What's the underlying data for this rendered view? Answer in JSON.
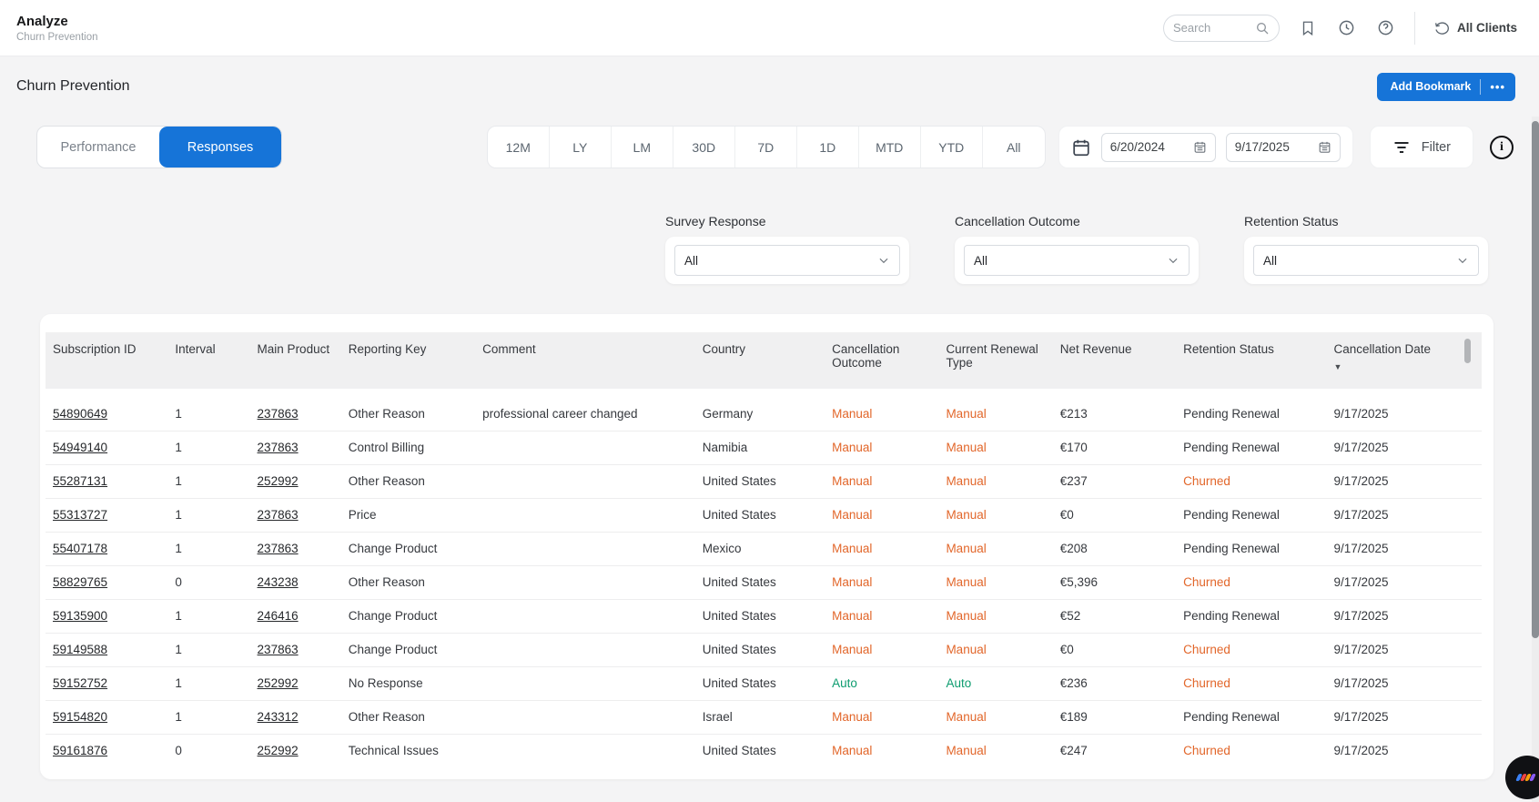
{
  "topbar": {
    "app_title": "Analyze",
    "app_subtitle": "Churn Prevention",
    "search_placeholder": "Search",
    "all_clients_label": "All Clients"
  },
  "page": {
    "title": "Churn Prevention",
    "add_bookmark_label": "Add Bookmark",
    "more_dots": "•••"
  },
  "tabs": [
    {
      "label": "Performance",
      "active": false
    },
    {
      "label": "Responses",
      "active": true
    }
  ],
  "time_ranges": [
    "12M",
    "LY",
    "LM",
    "30D",
    "7D",
    "1D",
    "MTD",
    "YTD",
    "All"
  ],
  "date_range": {
    "start": "6/20/2024",
    "end": "9/17/2025"
  },
  "filter_button_label": "Filter",
  "filters": [
    {
      "label": "Survey Response",
      "value": "All"
    },
    {
      "label": "Cancellation Outcome",
      "value": "All"
    },
    {
      "label": "Retention Status",
      "value": "All"
    }
  ],
  "table": {
    "columns": [
      {
        "key": "subscription_id",
        "label": "Subscription ID",
        "type": "link"
      },
      {
        "key": "interval",
        "label": "Interval",
        "type": "text"
      },
      {
        "key": "main_product",
        "label": "Main Product",
        "type": "link"
      },
      {
        "key": "reporting_key",
        "label": "Reporting Key",
        "type": "text"
      },
      {
        "key": "comment",
        "label": "Comment",
        "type": "text"
      },
      {
        "key": "country",
        "label": "Country",
        "type": "text"
      },
      {
        "key": "cancellation_outcome",
        "label": "Cancellation Outcome",
        "type": "auto_manual"
      },
      {
        "key": "current_renewal_type",
        "label": "Current Renewal Type",
        "type": "auto_manual"
      },
      {
        "key": "net_revenue",
        "label": "Net Revenue",
        "type": "text"
      },
      {
        "key": "retention_status",
        "label": "Retention Status",
        "type": "retention"
      },
      {
        "key": "cancellation_date",
        "label": "Cancellation Date",
        "type": "text",
        "sorted": "desc"
      }
    ],
    "rows": [
      {
        "subscription_id": "54890649",
        "interval": "1",
        "main_product": "237863",
        "reporting_key": "Other Reason",
        "comment": "professional career changed",
        "country": "Germany",
        "cancellation_outcome": "Manual",
        "current_renewal_type": "Manual",
        "net_revenue": "€213",
        "retention_status": "Pending Renewal",
        "cancellation_date": "9/17/2025"
      },
      {
        "subscription_id": "54949140",
        "interval": "1",
        "main_product": "237863",
        "reporting_key": "Control Billing",
        "comment": "",
        "country": "Namibia",
        "cancellation_outcome": "Manual",
        "current_renewal_type": "Manual",
        "net_revenue": "€170",
        "retention_status": "Pending Renewal",
        "cancellation_date": "9/17/2025"
      },
      {
        "subscription_id": "55287131",
        "interval": "1",
        "main_product": "252992",
        "reporting_key": "Other Reason",
        "comment": "",
        "country": "United States",
        "cancellation_outcome": "Manual",
        "current_renewal_type": "Manual",
        "net_revenue": "€237",
        "retention_status": "Churned",
        "cancellation_date": "9/17/2025"
      },
      {
        "subscription_id": "55313727",
        "interval": "1",
        "main_product": "237863",
        "reporting_key": "Price",
        "comment": "",
        "country": "United States",
        "cancellation_outcome": "Manual",
        "current_renewal_type": "Manual",
        "net_revenue": "€0",
        "retention_status": "Pending Renewal",
        "cancellation_date": "9/17/2025"
      },
      {
        "subscription_id": "55407178",
        "interval": "1",
        "main_product": "237863",
        "reporting_key": "Change Product",
        "comment": "",
        "country": "Mexico",
        "cancellation_outcome": "Manual",
        "current_renewal_type": "Manual",
        "net_revenue": "€208",
        "retention_status": "Pending Renewal",
        "cancellation_date": "9/17/2025"
      },
      {
        "subscription_id": "58829765",
        "interval": "0",
        "main_product": "243238",
        "reporting_key": "Other Reason",
        "comment": "",
        "country": "United States",
        "cancellation_outcome": "Manual",
        "current_renewal_type": "Manual",
        "net_revenue": "€5,396",
        "retention_status": "Churned",
        "cancellation_date": "9/17/2025"
      },
      {
        "subscription_id": "59135900",
        "interval": "1",
        "main_product": "246416",
        "reporting_key": "Change Product",
        "comment": "",
        "country": "United States",
        "cancellation_outcome": "Manual",
        "current_renewal_type": "Manual",
        "net_revenue": "€52",
        "retention_status": "Pending Renewal",
        "cancellation_date": "9/17/2025"
      },
      {
        "subscription_id": "59149588",
        "interval": "1",
        "main_product": "237863",
        "reporting_key": "Change Product",
        "comment": "",
        "country": "United States",
        "cancellation_outcome": "Manual",
        "current_renewal_type": "Manual",
        "net_revenue": "€0",
        "retention_status": "Churned",
        "cancellation_date": "9/17/2025"
      },
      {
        "subscription_id": "59152752",
        "interval": "1",
        "main_product": "252992",
        "reporting_key": "No Response",
        "comment": "",
        "country": "United States",
        "cancellation_outcome": "Auto",
        "current_renewal_type": "Auto",
        "net_revenue": "€236",
        "retention_status": "Churned",
        "cancellation_date": "9/17/2025"
      },
      {
        "subscription_id": "59154820",
        "interval": "1",
        "main_product": "243312",
        "reporting_key": "Other Reason",
        "comment": "",
        "country": "Israel",
        "cancellation_outcome": "Manual",
        "current_renewal_type": "Manual",
        "net_revenue": "€189",
        "retention_status": "Pending Renewal",
        "cancellation_date": "9/17/2025"
      },
      {
        "subscription_id": "59161876",
        "interval": "0",
        "main_product": "252992",
        "reporting_key": "Technical Issues",
        "comment": "",
        "country": "United States",
        "cancellation_outcome": "Manual",
        "current_renewal_type": "Manual",
        "net_revenue": "€247",
        "retention_status": "Churned",
        "cancellation_date": "9/17/2025"
      }
    ]
  },
  "colors": {
    "accent_blue": "#1674d8",
    "manual_orange": "#e2662a",
    "auto_green": "#0d9c6f",
    "churned_orange": "#e2662a"
  }
}
